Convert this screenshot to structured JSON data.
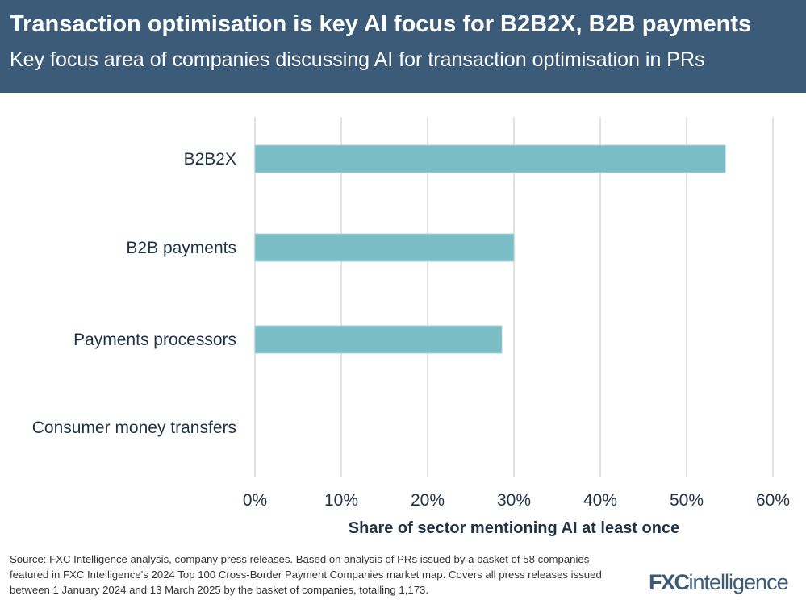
{
  "header": {
    "title": "Transaction optimisation is key AI focus for B2B2X, B2B payments",
    "subtitle": "Key focus area of companies discussing AI for transaction optimisation in PRs"
  },
  "chart_data": {
    "type": "bar",
    "orientation": "horizontal",
    "categories": [
      "B2B2X",
      "B2B payments",
      "Payments processors",
      "Consumer money transfers"
    ],
    "values": [
      54.5,
      30.0,
      28.6,
      0
    ],
    "xlabel": "Share of sector mentioning AI at least once",
    "xlim": [
      0,
      60
    ],
    "xticks": [
      "0%",
      "10%",
      "20%",
      "30%",
      "40%",
      "50%",
      "60%"
    ],
    "grid": "vertical",
    "bar_color": "#7bbdc5"
  },
  "footer": {
    "source": "Source: FXC Intelligence analysis, company press releases. Based on analysis of PRs issued by a basket of 58 companies featured in FXC Intelligence's 2024 Top 100 Cross-Border Payment Companies market map. Covers all press releases issued between 1 January 2024 and 13 March 2025 by the basket of companies, totalling 1,173.",
    "logo": "FXCintelligence"
  }
}
